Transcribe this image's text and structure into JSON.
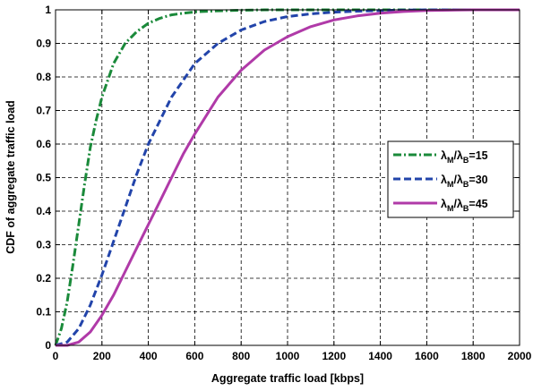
{
  "chart_data": {
    "type": "line",
    "title": "",
    "xlabel": "Aggregate traffic load [kbps]",
    "ylabel": "CDF of aggregate traffic load",
    "xlim": [
      0,
      2000
    ],
    "ylim": [
      0,
      1
    ],
    "x_ticks": [
      "0",
      "200",
      "400",
      "600",
      "800",
      "1000",
      "1200",
      "1400",
      "1600",
      "1800",
      "2000"
    ],
    "y_ticks": [
      "0",
      "0.1",
      "0.2",
      "0.3",
      "0.4",
      "0.5",
      "0.6",
      "0.7",
      "0.8",
      "0.9",
      "1"
    ],
    "grid": true,
    "legend_position": "center-right",
    "series": [
      {
        "name_main": "λ",
        "name_sub1": "M",
        "name_mid": "/λ",
        "name_sub2": "B",
        "name_tail": "=15",
        "color": "#1a8a3a",
        "style": "dash-dot",
        "x": [
          0,
          25,
          50,
          75,
          100,
          125,
          150,
          175,
          200,
          250,
          300,
          350,
          400,
          450,
          500,
          550,
          600,
          700,
          800,
          900,
          1000,
          1200,
          1400,
          1600,
          1800,
          2000
        ],
        "y": [
          0,
          0.05,
          0.13,
          0.24,
          0.36,
          0.48,
          0.59,
          0.67,
          0.74,
          0.84,
          0.9,
          0.935,
          0.96,
          0.975,
          0.985,
          0.99,
          0.994,
          0.997,
          0.999,
          1,
          1,
          1,
          1,
          1,
          1,
          1
        ]
      },
      {
        "name_main": "λ",
        "name_sub1": "M",
        "name_mid": "/λ",
        "name_sub2": "B",
        "name_tail": "=30",
        "color": "#2244aa",
        "style": "dashed",
        "x": [
          0,
          50,
          100,
          150,
          200,
          250,
          300,
          350,
          400,
          450,
          500,
          550,
          600,
          700,
          800,
          900,
          1000,
          1100,
          1200,
          1300,
          1400,
          1500,
          1600,
          1800,
          2000
        ],
        "y": [
          0,
          0.01,
          0.05,
          0.12,
          0.21,
          0.31,
          0.41,
          0.51,
          0.6,
          0.67,
          0.74,
          0.79,
          0.84,
          0.9,
          0.94,
          0.965,
          0.98,
          0.988,
          0.993,
          0.996,
          0.998,
          0.999,
          1,
          1,
          1
        ]
      },
      {
        "name_main": "λ",
        "name_sub1": "M",
        "name_mid": "/λ",
        "name_sub2": "B",
        "name_tail": "=45",
        "color": "#b03aa8",
        "style": "solid",
        "x": [
          0,
          50,
          100,
          150,
          200,
          250,
          300,
          350,
          400,
          450,
          500,
          550,
          600,
          700,
          800,
          900,
          1000,
          1100,
          1200,
          1300,
          1400,
          1500,
          1600,
          1700,
          1800,
          2000
        ],
        "y": [
          0,
          0.0,
          0.01,
          0.04,
          0.09,
          0.15,
          0.22,
          0.29,
          0.36,
          0.43,
          0.5,
          0.57,
          0.63,
          0.74,
          0.82,
          0.88,
          0.92,
          0.95,
          0.97,
          0.982,
          0.99,
          0.995,
          0.998,
          0.999,
          1,
          1
        ]
      }
    ]
  }
}
